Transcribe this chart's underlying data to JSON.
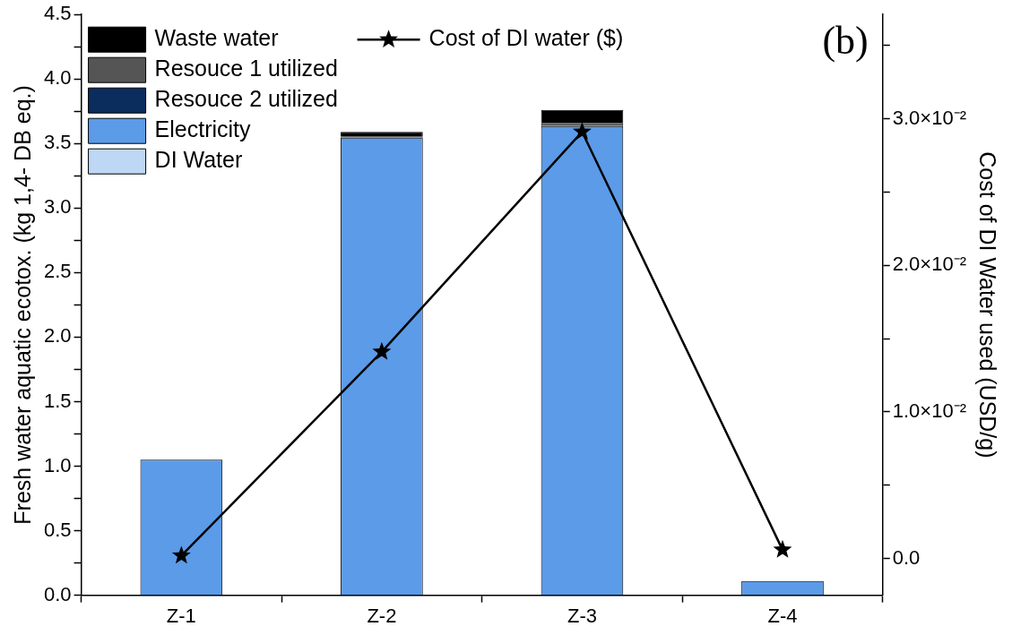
{
  "chart_data": {
    "type": "bar",
    "stacked": true,
    "categories": [
      "Z-1",
      "Z-2",
      "Z-3",
      "Z-4"
    ],
    "ylabel": "Fresh water aquatic ecotox. (kg 1,4- DB eq.)",
    "y2label": "Cost of DI Water used (USD/g)",
    "ylim": [
      0,
      4.5
    ],
    "yticks": [
      {
        "value": 0,
        "label": "0.0"
      },
      {
        "value": 0.25,
        "label": null
      },
      {
        "value": 0.5,
        "label": "0.5"
      },
      {
        "value": 0.75,
        "label": null
      },
      {
        "value": 1,
        "label": "1.0"
      },
      {
        "value": 1.25,
        "label": null
      },
      {
        "value": 1.5,
        "label": "1.5"
      },
      {
        "value": 1.75,
        "label": null
      },
      {
        "value": 2,
        "label": "2.0"
      },
      {
        "value": 2.25,
        "label": null
      },
      {
        "value": 2.5,
        "label": "2.5"
      },
      {
        "value": 2.75,
        "label": null
      },
      {
        "value": 3,
        "label": "3.0"
      },
      {
        "value": 3.25,
        "label": null
      },
      {
        "value": 3.5,
        "label": "3.5"
      },
      {
        "value": 3.75,
        "label": null
      },
      {
        "value": 4,
        "label": "4.0"
      },
      {
        "value": 4.25,
        "label": null
      },
      {
        "value": 4.5,
        "label": "4.5"
      }
    ],
    "y2lim": [
      -0.0025,
      0.0371
    ],
    "y2ticks": [
      {
        "value": 0,
        "label": "0.0"
      },
      {
        "value": 0.005,
        "label": null
      },
      {
        "value": 0.01,
        "label": "1.0×10⁻²"
      },
      {
        "value": 0.015,
        "label": null
      },
      {
        "value": 0.02,
        "label": "2.0×10⁻²"
      },
      {
        "value": 0.025,
        "label": null
      },
      {
        "value": 0.03,
        "label": "3.0×10⁻²"
      },
      {
        "value": 0.035,
        "label": null
      }
    ],
    "series": [
      {
        "name": "DI Water",
        "color": "#bdd7f5",
        "values": [
          0,
          0,
          0,
          0
        ]
      },
      {
        "name": "Electricity",
        "color": "#5b9be8",
        "values": [
          1.05,
          3.545,
          3.635,
          0.11
        ]
      },
      {
        "name": "Resouce 2 utilized",
        "color": "#0b2d5e",
        "values": [
          0,
          0,
          0,
          0
        ]
      },
      {
        "name": "Resouce 1 utilized",
        "color": "#555555",
        "values": [
          0,
          0.01,
          0.025,
          0
        ]
      },
      {
        "name": "Waste water",
        "color": "#000000",
        "values": [
          0,
          0.035,
          0.1,
          0
        ]
      },
      {
        "name": "Cost of DI water ($)",
        "type": "line",
        "axis": "y2",
        "color": "#000000",
        "values": [
          0.0002,
          0.0141,
          0.0291,
          0.0006
        ]
      }
    ],
    "marker": "star",
    "grid": false,
    "legend": "top left",
    "annotations": [
      "(b)"
    ]
  }
}
